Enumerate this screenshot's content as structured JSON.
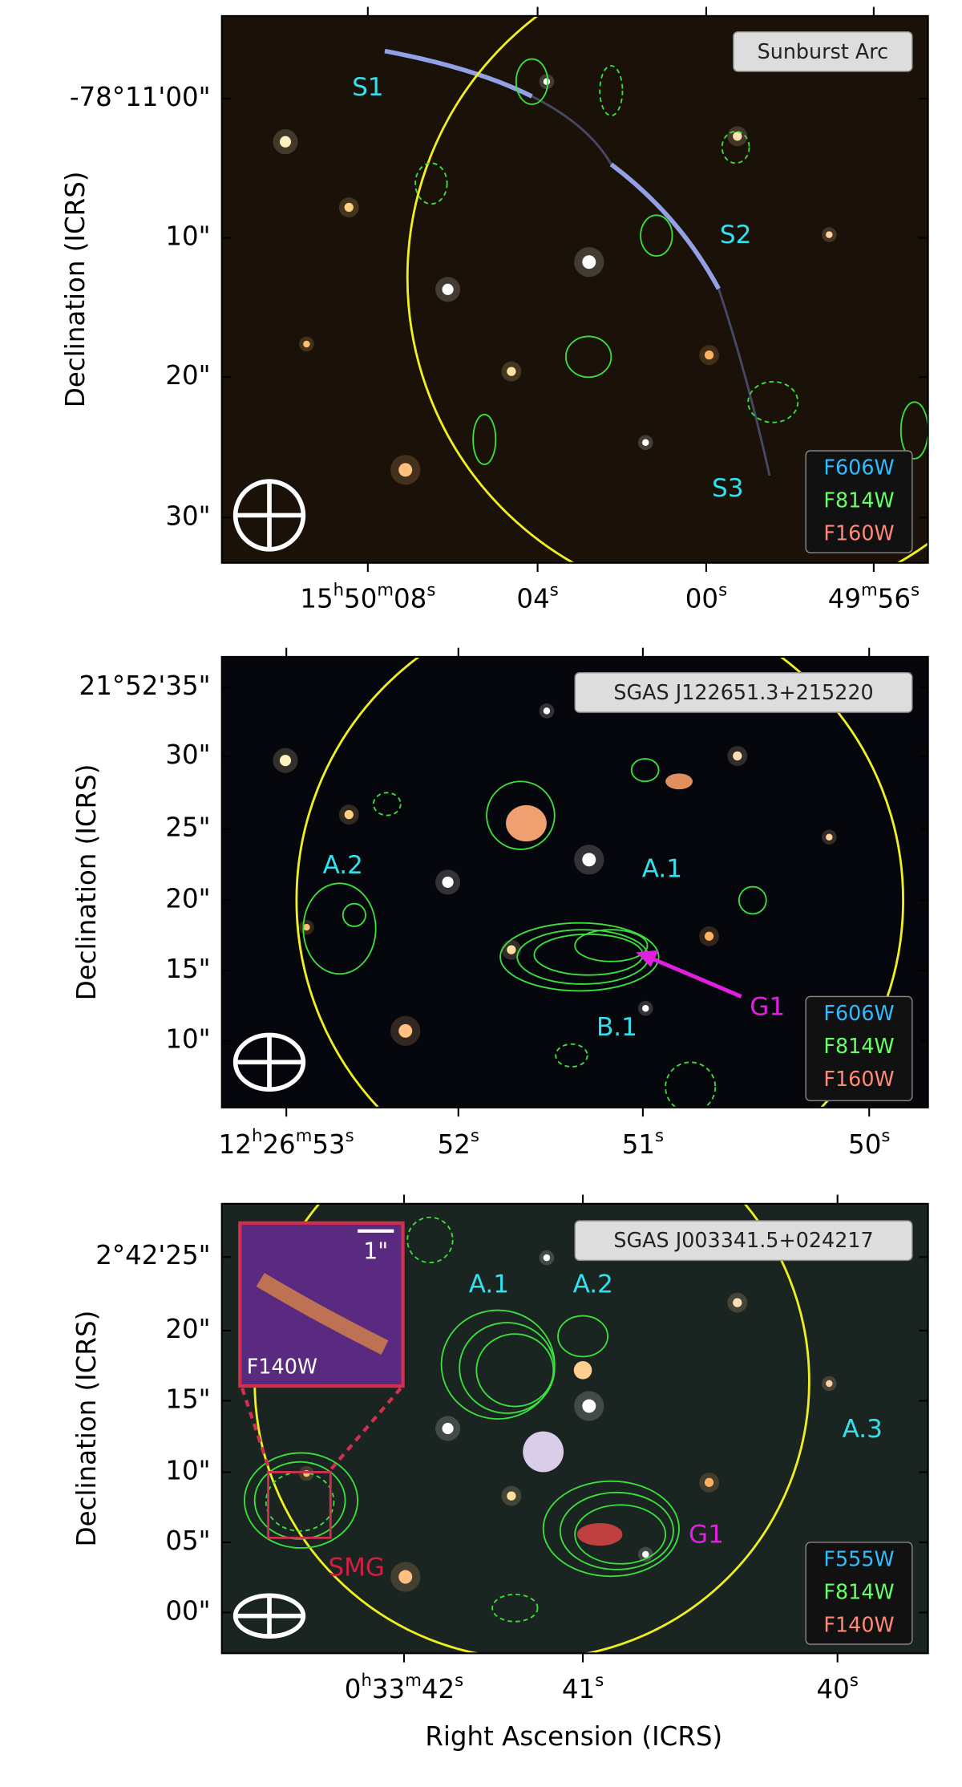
{
  "x_label": "Right Ascension (ICRS)",
  "panels": [
    {
      "title": "Sunburst Arc",
      "y_label": "Declination (ICRS)",
      "y_ticks": [
        "-78°11'00\"",
        "10\"",
        "20\"",
        "30\""
      ],
      "x_ticks": [
        "15h50m08s",
        "04s",
        "00s",
        "49m56s"
      ],
      "filters": [
        "F606W",
        "F814W",
        "F160W"
      ],
      "annotations": [
        "S1",
        "S2",
        "S3"
      ]
    },
    {
      "title": "SGAS J122651.3+215220",
      "y_label": "Declination (ICRS)",
      "y_ticks": [
        "21°52'35\"",
        "30\"",
        "25\"",
        "20\"",
        "15\"",
        "10\""
      ],
      "x_ticks": [
        "12h26m53s",
        "52s",
        "51s",
        "50s"
      ],
      "filters": [
        "F606W",
        "F814W",
        "F160W"
      ],
      "annotations": [
        "A.2",
        "A.1",
        "B.1",
        "G1"
      ]
    },
    {
      "title": "SGAS J003341.5+024217",
      "y_label": "Declination (ICRS)",
      "y_ticks": [
        "2°42'25\"",
        "20\"",
        "15\"",
        "10\"",
        "05\"",
        "00\""
      ],
      "x_ticks": [
        "0h33m42s",
        "41s",
        "40s"
      ],
      "filters": [
        "F555W",
        "F814W",
        "F140W"
      ],
      "annotations": [
        "A.1",
        "A.2",
        "A.3",
        "G1",
        "SMG"
      ],
      "inset": {
        "scale": "1\"",
        "filter": "F140W"
      }
    }
  ]
}
